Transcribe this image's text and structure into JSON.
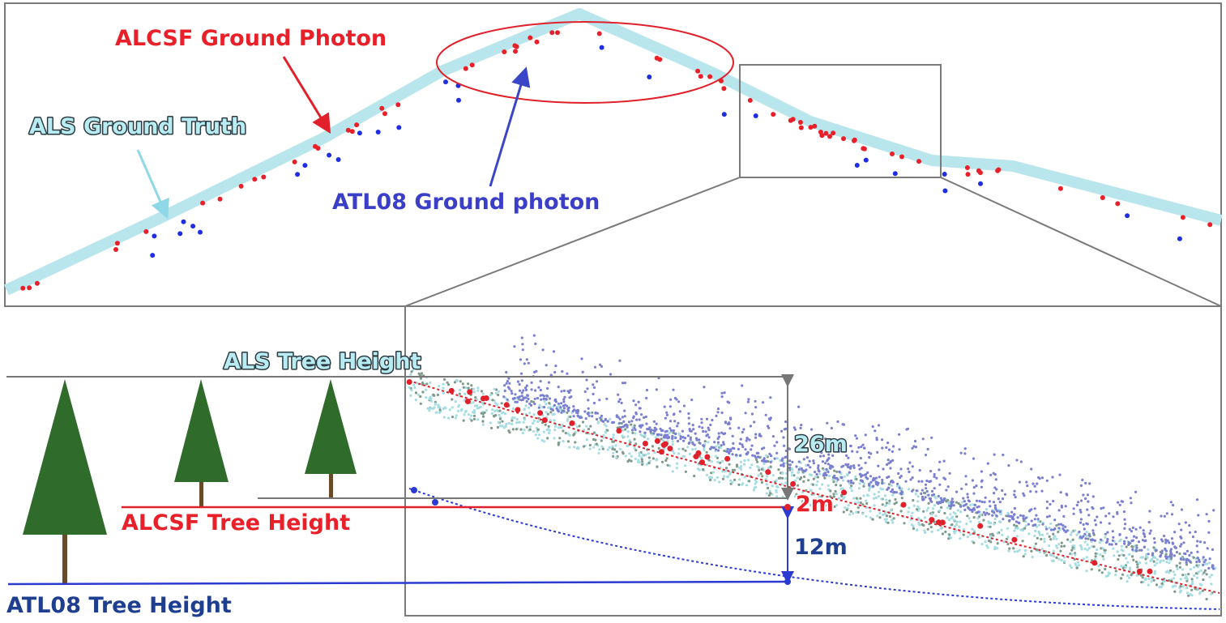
{
  "labels": {
    "alcsf_ground_photon": "ALCSF Ground Photon",
    "als_ground_truth": "ALS Ground Truth",
    "atl08_ground_photon": "ATL08 Ground photon",
    "als_tree_height": "ALS Tree Height",
    "als_diff": "26m",
    "alcsf_diff": "2m",
    "atl08_diff": "12m",
    "alcsf_tree_height": "ALCSF Tree Height",
    "atl08_tree_height": "ATL08 Tree Height"
  }
}
